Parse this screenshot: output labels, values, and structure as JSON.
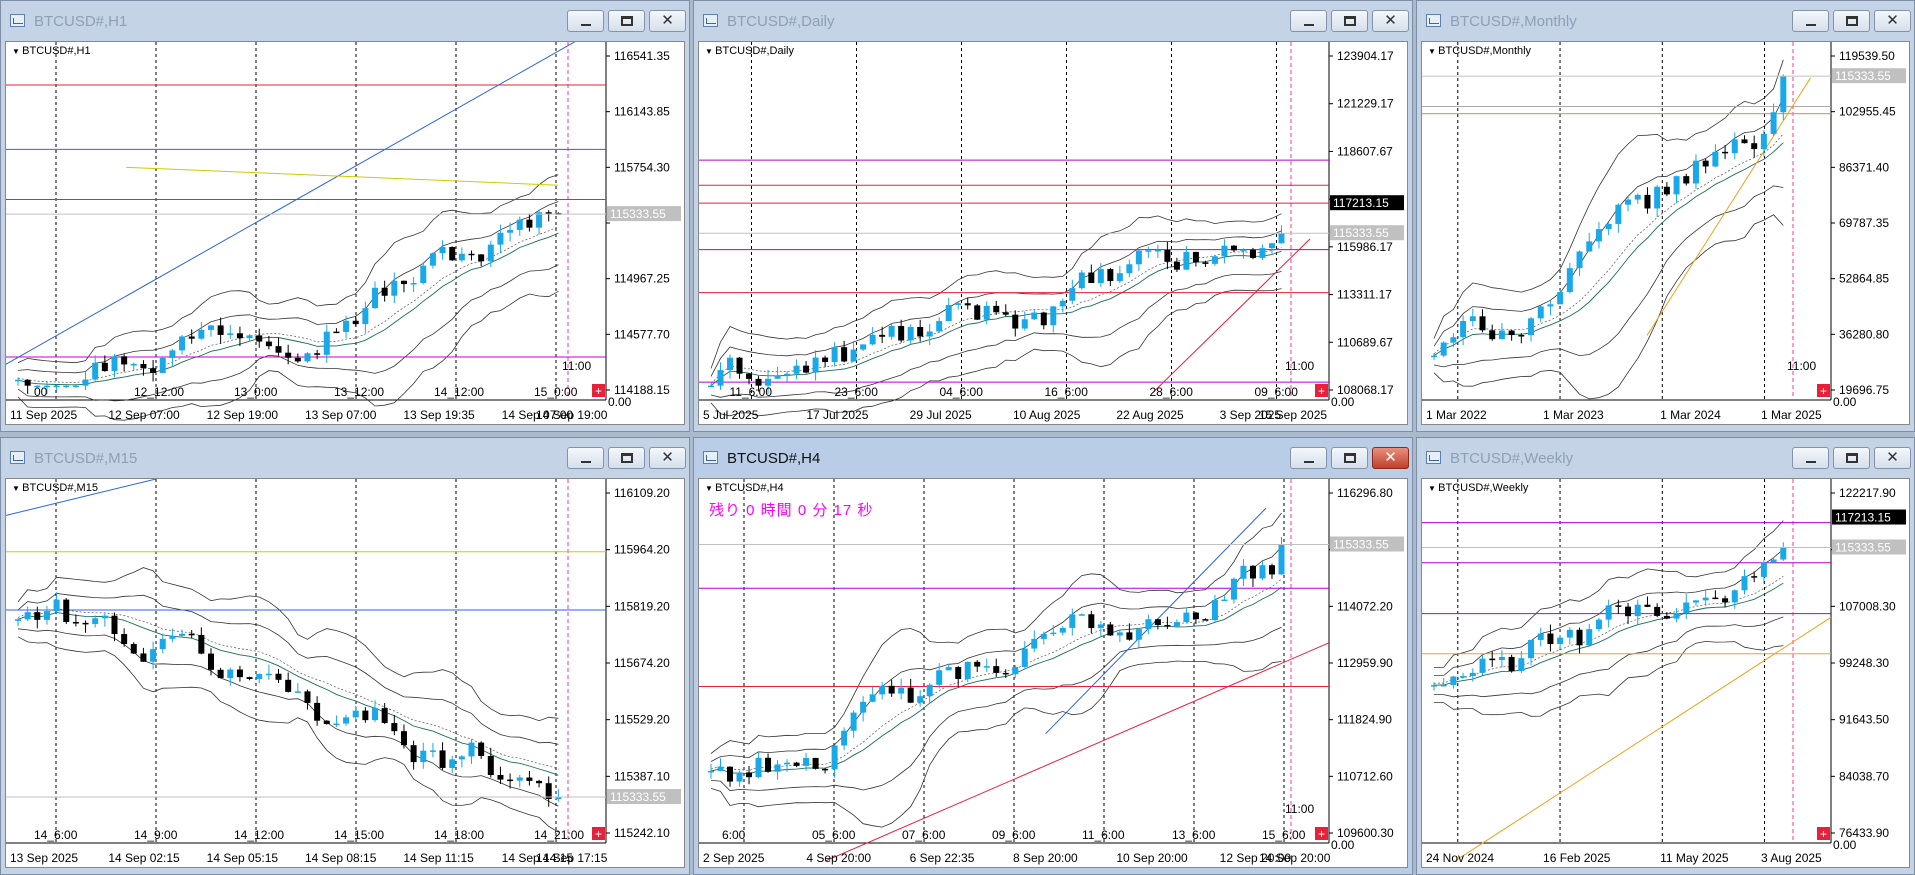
{
  "colors": {
    "bull": "#1aa9e8",
    "bear": "#000000",
    "band": "#000000",
    "mid": "#1b6d5a",
    "accent_red": "#e8203a",
    "accent_mag": "#b400d6",
    "accent_blue": "#2d62e0",
    "accent_orange": "#f0a020",
    "current_price_bg": "#c0c0c0",
    "flag_bg": "#000000"
  },
  "icons": {
    "window": "chart-window-icon",
    "minimize": "minimize-icon",
    "maximize": "maximize-icon",
    "close": "close-icon",
    "plus": "plus-box-icon"
  },
  "windows": [
    {
      "title": "BTCUSD#,H1",
      "symbol": "BTCUSD#,H1",
      "active": false,
      "countdown": "",
      "price_labels": [
        "116541.35",
        "116143.85",
        "115754.30",
        "",
        "114967.25",
        "114577.70",
        "114188.15"
      ],
      "current_price": "115333.55",
      "flag_price": "",
      "bottom_right": "0.00",
      "x_labels": [
        "11 Sep 2025",
        "12 Sep 07:00",
        "12 Sep 19:00",
        "13 Sep 07:00",
        "13 Sep 19:35",
        "14 Sep 07:00",
        "14 Sep 19:00"
      ],
      "time_labels": [
        "00",
        "12_12:00",
        "13_0:00",
        "13_12:00",
        "14_12:00",
        "15_0:00"
      ],
      "axis_time": "11:00",
      "chart_data": {
        "type": "candlestick",
        "ylim": [
          114100,
          116700
        ],
        "start": 114300,
        "end": 115450,
        "hi": 116600,
        "lo": 114150
      }
    },
    {
      "title": "BTCUSD#,Daily",
      "symbol": "BTCUSD#,Daily",
      "active": false,
      "countdown": "",
      "price_labels": [
        "123904.17",
        "121229.17",
        "118607.67",
        "",
        "115986.17",
        "113311.17",
        "110689.67",
        "108068.17"
      ],
      "current_price": "115333.55",
      "flag_price": "117213.15",
      "bottom_right": "0.00",
      "x_labels": [
        "5 Jul 2025",
        "17 Jul 2025",
        "29 Jul 2025",
        "10 Aug 2025",
        "22 Aug 2025",
        "3 Sep 2025",
        "15 Sep 2025"
      ],
      "time_labels": [
        "11_6:00",
        "23_6:00",
        "04_6:00",
        "16_6:00",
        "28_6:00",
        "09_6:00"
      ],
      "axis_time": "11:00",
      "chart_data": {
        "type": "candlestick",
        "ylim": [
          107200,
          124800
        ],
        "start": 108000,
        "end": 115400,
        "hi": 124400,
        "lo": 107400
      }
    },
    {
      "title": "BTCUSD#,Monthly",
      "symbol": "BTCUSD#,Monthly",
      "active": false,
      "countdown": "",
      "price_labels": [
        "119539.50",
        "102955.45",
        "86371.40",
        "69787.35",
        "52864.85",
        "36280.80",
        "19696.75"
      ],
      "current_price": "115333.55",
      "flag_price": "",
      "bottom_right": "0.00",
      "x_labels": [
        "1 Mar 2022",
        "1 Mar 2023",
        "1 Mar 2024",
        "1 Mar 2025"
      ],
      "time_labels": [],
      "axis_time": "11:00",
      "chart_data": {
        "type": "candlestick",
        "ylim": [
          15000,
          126000
        ],
        "start": 30000,
        "end": 115400,
        "hi": 124000,
        "lo": 15600
      }
    },
    {
      "title": "BTCUSD#,M15",
      "symbol": "BTCUSD#,M15",
      "active": false,
      "countdown": "",
      "price_labels": [
        "116109.20",
        "115964.20",
        "115819.20",
        "115674.20",
        "115529.20",
        "115387.10",
        "115242.10"
      ],
      "current_price": "115333.55",
      "flag_price": "",
      "bottom_right": "",
      "x_labels": [
        "13 Sep 2025",
        "14 Sep 02:15",
        "14 Sep 05:15",
        "14 Sep 08:15",
        "14 Sep 11:15",
        "14 Sep 14:15",
        "14 Sep 17:15"
      ],
      "time_labels": [
        "14_6:00",
        "14_9:00",
        "14_12:00",
        "14_15:00",
        "14_18:00",
        "14_21:00"
      ],
      "axis_time": "",
      "chart_data": {
        "type": "candlestick",
        "ylim": [
          115210,
          116160
        ],
        "start": 115800,
        "end": 115330,
        "hi": 116130,
        "lo": 115220
      }
    },
    {
      "title": "BTCUSD#,H4",
      "symbol": "BTCUSD#,H4",
      "active": true,
      "countdown": "残り 0 時間 0 分 17 秒",
      "price_labels": [
        "116296.80",
        "",
        "114072.20",
        "112959.90",
        "111824.90",
        "110712.60",
        "109600.30"
      ],
      "current_price": "115333.55",
      "flag_price": "",
      "bottom_right": "0.00",
      "x_labels": [
        "2 Sep 2025",
        "4 Sep 20:00",
        "6 Sep 22:35",
        "8 Sep 20:00",
        "10 Sep 20:00",
        "12 Sep 20:00",
        "14 Sep 20:00"
      ],
      "time_labels": [
        "6:00",
        "05_6:00",
        "07_6:00",
        "09_6:00",
        "11_6:00",
        "13_6:00",
        "15_6:00"
      ],
      "axis_time": "11:00",
      "chart_data": {
        "type": "candlestick",
        "ylim": [
          109300,
          116800
        ],
        "start": 110800,
        "end": 115450,
        "hi": 116600,
        "lo": 109400
      }
    },
    {
      "title": "BTCUSD#,Weekly",
      "symbol": "BTCUSD#,Weekly",
      "active": false,
      "countdown": "",
      "price_labels": [
        "122217.90",
        "",
        "107008.30",
        "99248.30",
        "91643.50",
        "84038.70",
        "76433.90"
      ],
      "current_price": "115333.55",
      "flag_price": "117213.15",
      "bottom_right": "0.00",
      "x_labels": [
        "24 Nov 2024",
        "16 Feb 2025",
        "11 May 2025",
        "3 Aug 2025"
      ],
      "time_labels": [],
      "axis_time": "",
      "chart_data": {
        "type": "candlestick",
        "ylim": [
          74000,
          125000
        ],
        "start": 96000,
        "end": 115400,
        "hi": 124000,
        "lo": 75000
      }
    }
  ]
}
